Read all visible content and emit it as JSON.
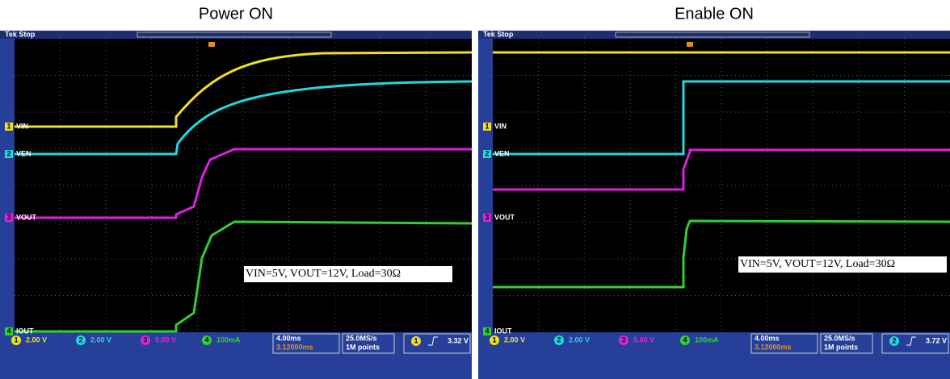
{
  "panels": [
    {
      "title": "Power ON",
      "status": "Tek Stop",
      "channels": [
        {
          "marker": "1",
          "label": "VIN"
        },
        {
          "marker": "2",
          "label": "VEN"
        },
        {
          "marker": "3",
          "label": "VOUT"
        },
        {
          "marker": "4",
          "label": "IOUT"
        }
      ],
      "annotation": "VIN=5V, VOUT=12V, Load=30Ω",
      "readouts": {
        "ch1": "2.00 V",
        "ch2": "2.00 V",
        "ch3": "5.00 V",
        "ch4": "100mA",
        "timebase": "4.00ms",
        "delay": "3.12000ms",
        "rate": "25.0MS/s",
        "points": "1M points",
        "trigger_source": "1",
        "trigger_level": "3.32 V"
      }
    },
    {
      "title": "Enable ON",
      "status": "Tek Stop",
      "channels": [
        {
          "marker": "1",
          "label": "VIN"
        },
        {
          "marker": "2",
          "label": "VEN"
        },
        {
          "marker": "3",
          "label": "VOUT"
        },
        {
          "marker": "4",
          "label": "IOUT"
        }
      ],
      "annotation": "VIN=5V, VOUT=12V, Load=30Ω",
      "readouts": {
        "ch1": "2.00 V",
        "ch2": "2.00 V",
        "ch3": "5.00 V",
        "ch4": "100mA",
        "timebase": "4.00ms",
        "delay": "3.12000ms",
        "rate": "25.0MS/s",
        "points": "1M points",
        "trigger_source": "2",
        "trigger_level": "3.72 V"
      }
    }
  ]
}
